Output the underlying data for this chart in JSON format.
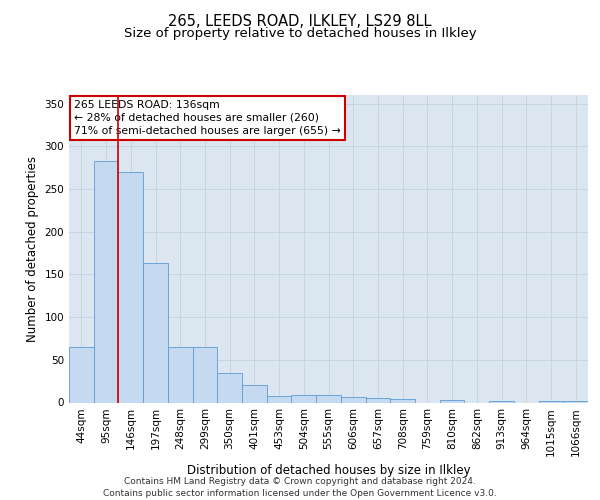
{
  "title": "265, LEEDS ROAD, ILKLEY, LS29 8LL",
  "subtitle": "Size of property relative to detached houses in Ilkley",
  "xlabel": "Distribution of detached houses by size in Ilkley",
  "ylabel": "Number of detached properties",
  "bar_labels": [
    "44sqm",
    "95sqm",
    "146sqm",
    "197sqm",
    "248sqm",
    "299sqm",
    "350sqm",
    "401sqm",
    "453sqm",
    "504sqm",
    "555sqm",
    "606sqm",
    "657sqm",
    "708sqm",
    "759sqm",
    "810sqm",
    "862sqm",
    "913sqm",
    "964sqm",
    "1015sqm",
    "1066sqm"
  ],
  "bar_values": [
    65,
    283,
    270,
    163,
    65,
    65,
    35,
    20,
    8,
    9,
    9,
    6,
    5,
    4,
    0,
    3,
    0,
    2,
    0,
    2,
    2
  ],
  "bar_color": "#c5d9f1",
  "bar_edge_color": "#5b9bd5",
  "grid_color": "#d0d8e8",
  "background_color": "#dce6f1",
  "vline_color": "#cc0000",
  "annotation_text": "265 LEEDS ROAD: 136sqm\n← 28% of detached houses are smaller (260)\n71% of semi-detached houses are larger (655) →",
  "annotation_box_color": "#ffffff",
  "annotation_box_edge": "#cc0000",
  "ylim": [
    0,
    360
  ],
  "yticks": [
    0,
    50,
    100,
    150,
    200,
    250,
    300,
    350
  ],
  "footer": "Contains HM Land Registry data © Crown copyright and database right 2024.\nContains public sector information licensed under the Open Government Licence v3.0.",
  "title_fontsize": 10.5,
  "subtitle_fontsize": 9.5,
  "axis_label_fontsize": 8.5,
  "tick_fontsize": 7.5,
  "footer_fontsize": 6.5,
  "annotation_fontsize": 7.8
}
